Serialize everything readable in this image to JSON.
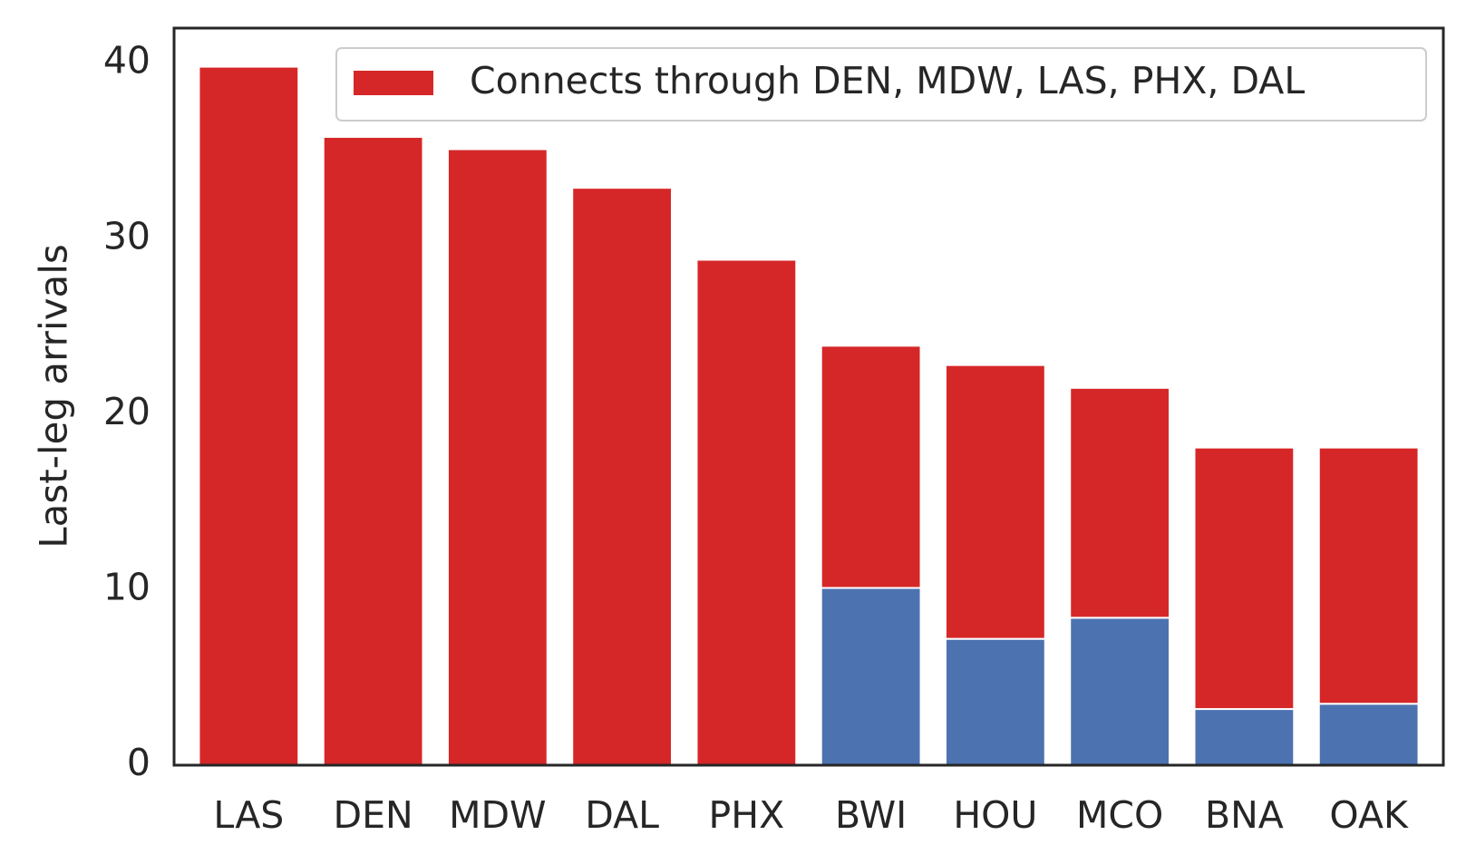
{
  "chart_data": {
    "type": "bar",
    "stacked": true,
    "categories": [
      "LAS",
      "DEN",
      "MDW",
      "DAL",
      "PHX",
      "BWI",
      "HOU",
      "MCO",
      "BNA",
      "OAK"
    ],
    "series": [
      {
        "color": "#4c72b0",
        "values": [
          0,
          0,
          0,
          0,
          0,
          10.1,
          7.2,
          8.4,
          3.2,
          3.5
        ]
      },
      {
        "name": "Connects through DEN, MDW, LAS, PHX, DAL",
        "color": "#d62728",
        "values": [
          39.8,
          35.8,
          35.1,
          32.9,
          28.8,
          13.8,
          15.6,
          13.1,
          14.9,
          14.6
        ]
      }
    ],
    "ylabel": "Last-leg arrivals",
    "xlabel": "",
    "ylim": [
      0,
      42
    ],
    "yticks": [
      0,
      10,
      20,
      30,
      40
    ],
    "grid": false,
    "legend_position": "top-right"
  }
}
